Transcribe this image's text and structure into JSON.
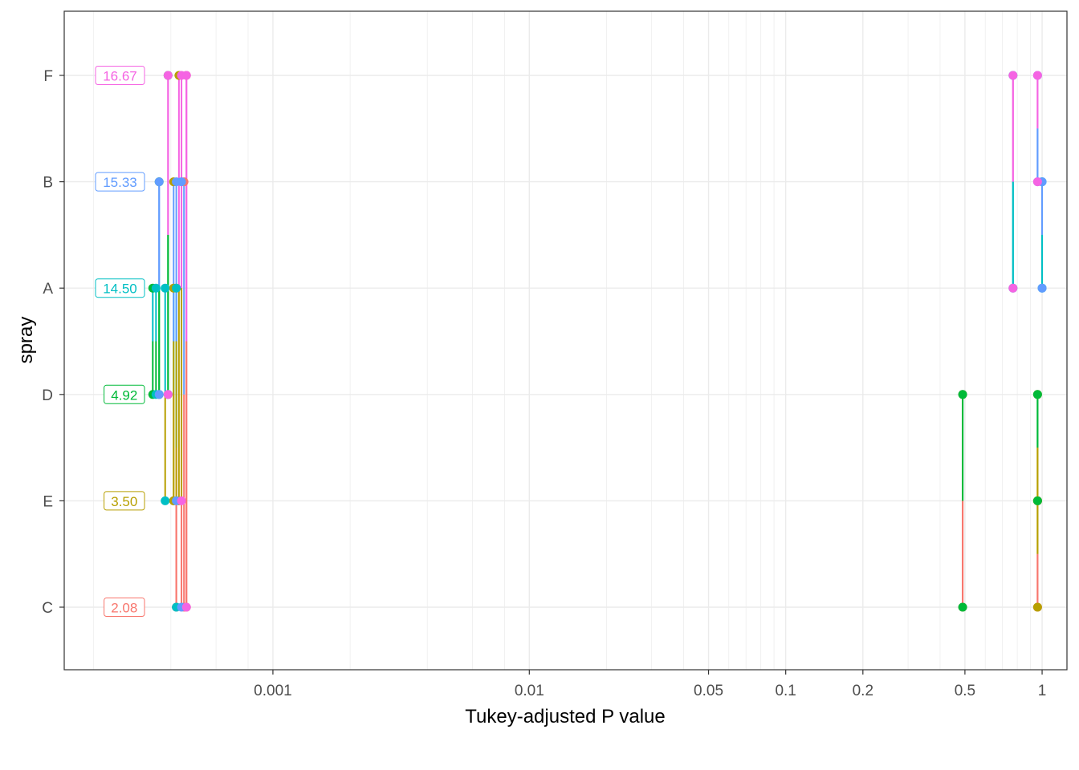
{
  "chart_data": {
    "type": "scatter",
    "title": "",
    "xlabel": "Tukey-adjusted P value",
    "ylabel": "spray",
    "x_scale": "log",
    "xlim": [
      0.0001535,
      1.25
    ],
    "x_ticks": [
      {
        "value": 0.001,
        "label": "0.001"
      },
      {
        "value": 0.01,
        "label": "0.01"
      },
      {
        "value": 0.05,
        "label": "0.05"
      },
      {
        "value": 0.1,
        "label": "0.1"
      },
      {
        "value": 0.2,
        "label": "0.2"
      },
      {
        "value": 0.5,
        "label": "0.5"
      },
      {
        "value": 1,
        "label": "1"
      }
    ],
    "x_minor_ticks": [
      0.0002,
      0.0004,
      0.0006,
      0.0008,
      0.002,
      0.004,
      0.006,
      0.008,
      0.02,
      0.03,
      0.04,
      0.06,
      0.07,
      0.08,
      0.09,
      0.3,
      0.4,
      0.6,
      0.7,
      0.8,
      0.9
    ],
    "categories": [
      "C",
      "E",
      "D",
      "A",
      "B",
      "F"
    ],
    "grid": true,
    "legend": "none",
    "means": [
      {
        "group": "C",
        "label": "2.08",
        "color": "#F8766D"
      },
      {
        "group": "E",
        "label": "3.50",
        "color": "#B79F00"
      },
      {
        "group": "D",
        "label": "4.92",
        "color": "#00BA38"
      },
      {
        "group": "A",
        "label": "14.50",
        "color": "#00BFC4"
      },
      {
        "group": "B",
        "label": "15.33",
        "color": "#619CFF"
      },
      {
        "group": "F",
        "label": "16.67",
        "color": "#F564E3"
      }
    ],
    "series": [
      {
        "from": "C",
        "to": "E",
        "p": 0.96,
        "color": "#F8766D"
      },
      {
        "from": "C",
        "to": "D",
        "p": 0.49,
        "color": "#F8766D"
      },
      {
        "from": "C",
        "to": "A",
        "p": 0.00042,
        "color": "#F8766D"
      },
      {
        "from": "C",
        "to": "B",
        "p": 0.00045,
        "color": "#F8766D"
      },
      {
        "from": "C",
        "to": "F",
        "p": 0.00046,
        "color": "#F8766D"
      },
      {
        "from": "E",
        "to": "C",
        "p": 0.96,
        "color": "#B79F00"
      },
      {
        "from": "E",
        "to": "D",
        "p": 0.96,
        "color": "#B79F00"
      },
      {
        "from": "E",
        "to": "A",
        "p": 0.00041,
        "color": "#B79F00"
      },
      {
        "from": "E",
        "to": "B",
        "p": 0.00041,
        "color": "#B79F00"
      },
      {
        "from": "E",
        "to": "F",
        "p": 0.00043,
        "color": "#B79F00"
      },
      {
        "from": "D",
        "to": "C",
        "p": 0.49,
        "color": "#00BA38"
      },
      {
        "from": "D",
        "to": "E",
        "p": 0.96,
        "color": "#00BA38"
      },
      {
        "from": "D",
        "to": "A",
        "p": 0.00034,
        "color": "#00BA38"
      },
      {
        "from": "D",
        "to": "B",
        "p": 0.00036,
        "color": "#00BA38"
      },
      {
        "from": "D",
        "to": "F",
        "p": 0.00039,
        "color": "#00BA38"
      },
      {
        "from": "A",
        "to": "C",
        "p": 0.00042,
        "color": "#00BFC4"
      },
      {
        "from": "A",
        "to": "E",
        "p": 0.00038,
        "color": "#00BFC4"
      },
      {
        "from": "A",
        "to": "D",
        "p": 0.00035,
        "color": "#00BFC4"
      },
      {
        "from": "A",
        "to": "B",
        "p": 1.0,
        "color": "#00BFC4"
      },
      {
        "from": "A",
        "to": "F",
        "p": 0.77,
        "color": "#00BFC4"
      },
      {
        "from": "B",
        "to": "C",
        "p": 0.00044,
        "color": "#619CFF"
      },
      {
        "from": "B",
        "to": "E",
        "p": 0.00042,
        "color": "#619CFF"
      },
      {
        "from": "B",
        "to": "D",
        "p": 0.00036,
        "color": "#619CFF"
      },
      {
        "from": "B",
        "to": "A",
        "p": 1.0,
        "color": "#619CFF"
      },
      {
        "from": "B",
        "to": "F",
        "p": 0.96,
        "color": "#619CFF"
      },
      {
        "from": "F",
        "to": "C",
        "p": 0.00046,
        "color": "#F564E3"
      },
      {
        "from": "F",
        "to": "E",
        "p": 0.00044,
        "color": "#F564E3"
      },
      {
        "from": "F",
        "to": "D",
        "p": 0.00039,
        "color": "#F564E3"
      },
      {
        "from": "F",
        "to": "A",
        "p": 0.77,
        "color": "#F564E3"
      },
      {
        "from": "F",
        "to": "B",
        "p": 0.96,
        "color": "#F564E3"
      }
    ]
  }
}
